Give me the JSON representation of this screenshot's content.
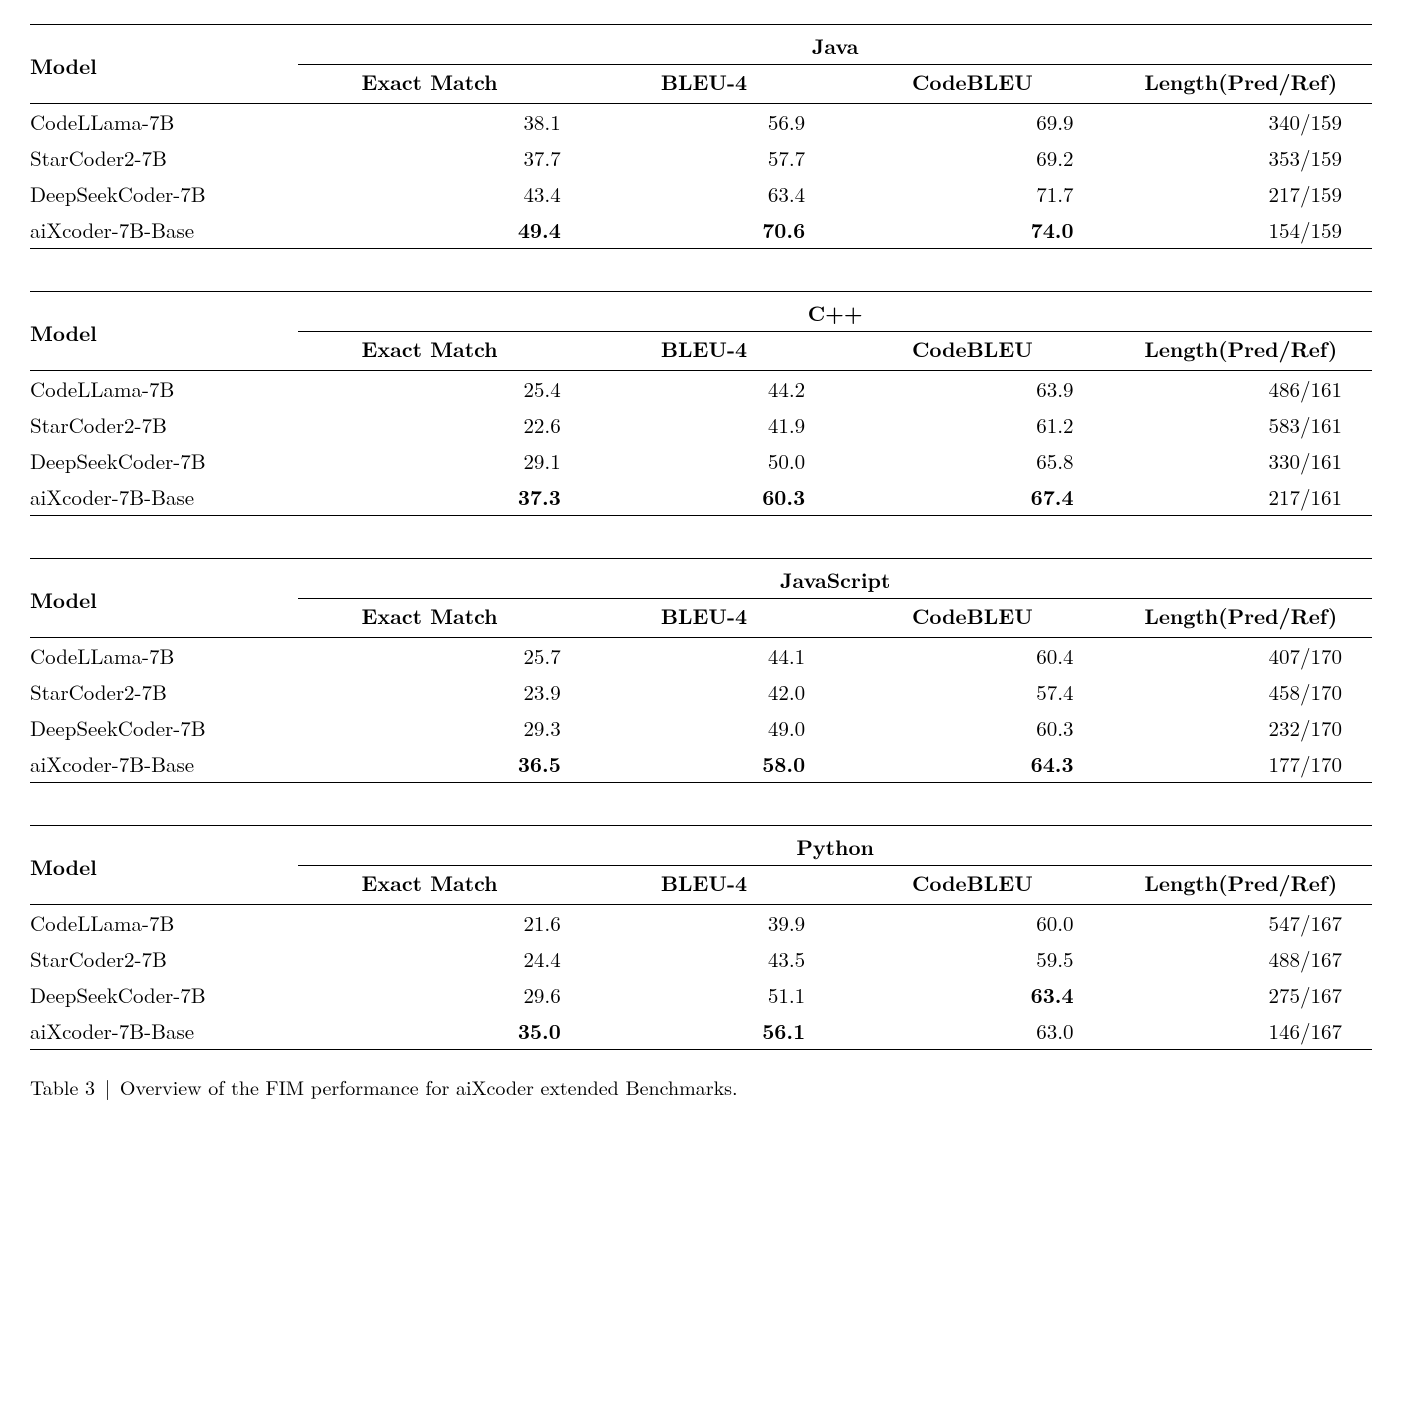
{
  "caption": {
    "label": "Table 3",
    "sep": "|",
    "text": "Overview of the FIM performance for aiXcoder extended Benchmarks."
  },
  "columns": {
    "model": "Model",
    "exact": "Exact Match",
    "bleu": "BLEU-4",
    "code": "CodeBLEU",
    "len": "Length(Pred/Ref)"
  },
  "tables": [
    {
      "language": "Java",
      "rows": [
        {
          "model": "CodeLLama-7B",
          "exact": "38.1",
          "bleu": "56.9",
          "code": "69.9",
          "len": "340/159",
          "bold": {}
        },
        {
          "model": "StarCoder2-7B",
          "exact": "37.7",
          "bleu": "57.7",
          "code": "69.2",
          "len": "353/159",
          "bold": {}
        },
        {
          "model": "DeepSeekCoder-7B",
          "exact": "43.4",
          "bleu": "63.4",
          "code": "71.7",
          "len": "217/159",
          "bold": {}
        },
        {
          "model": "aiXcoder-7B-Base",
          "exact": "49.4",
          "bleu": "70.6",
          "code": "74.0",
          "len": "154/159",
          "bold": {
            "exact": true,
            "bleu": true,
            "code": true
          }
        }
      ]
    },
    {
      "language": "C++",
      "rows": [
        {
          "model": "CodeLLama-7B",
          "exact": "25.4",
          "bleu": "44.2",
          "code": "63.9",
          "len": "486/161",
          "bold": {}
        },
        {
          "model": "StarCoder2-7B",
          "exact": "22.6",
          "bleu": "41.9",
          "code": "61.2",
          "len": "583/161",
          "bold": {}
        },
        {
          "model": "DeepSeekCoder-7B",
          "exact": "29.1",
          "bleu": "50.0",
          "code": "65.8",
          "len": "330/161",
          "bold": {}
        },
        {
          "model": "aiXcoder-7B-Base",
          "exact": "37.3",
          "bleu": "60.3",
          "code": "67.4",
          "len": "217/161",
          "bold": {
            "exact": true,
            "bleu": true,
            "code": true
          }
        }
      ]
    },
    {
      "language": "JavaScript",
      "rows": [
        {
          "model": "CodeLLama-7B",
          "exact": "25.7",
          "bleu": "44.1",
          "code": "60.4",
          "len": "407/170",
          "bold": {}
        },
        {
          "model": "StarCoder2-7B",
          "exact": "23.9",
          "bleu": "42.0",
          "code": "57.4",
          "len": "458/170",
          "bold": {}
        },
        {
          "model": "DeepSeekCoder-7B",
          "exact": "29.3",
          "bleu": "49.0",
          "code": "60.3",
          "len": "232/170",
          "bold": {}
        },
        {
          "model": "aiXcoder-7B-Base",
          "exact": "36.5",
          "bleu": "58.0",
          "code": "64.3",
          "len": "177/170",
          "bold": {
            "exact": true,
            "bleu": true,
            "code": true
          }
        }
      ]
    },
    {
      "language": "Python",
      "rows": [
        {
          "model": "CodeLLama-7B",
          "exact": "21.6",
          "bleu": "39.9",
          "code": "60.0",
          "len": "547/167",
          "bold": {}
        },
        {
          "model": "StarCoder2-7B",
          "exact": "24.4",
          "bleu": "43.5",
          "code": "59.5",
          "len": "488/167",
          "bold": {}
        },
        {
          "model": "DeepSeekCoder-7B",
          "exact": "29.6",
          "bleu": "51.1",
          "code": "63.4",
          "len": "275/167",
          "bold": {
            "code": true
          }
        },
        {
          "model": "aiXcoder-7B-Base",
          "exact": "35.0",
          "bleu": "56.1",
          "code": "63.0",
          "len": "146/167",
          "bold": {
            "exact": true,
            "bleu": true
          }
        }
      ]
    }
  ]
}
